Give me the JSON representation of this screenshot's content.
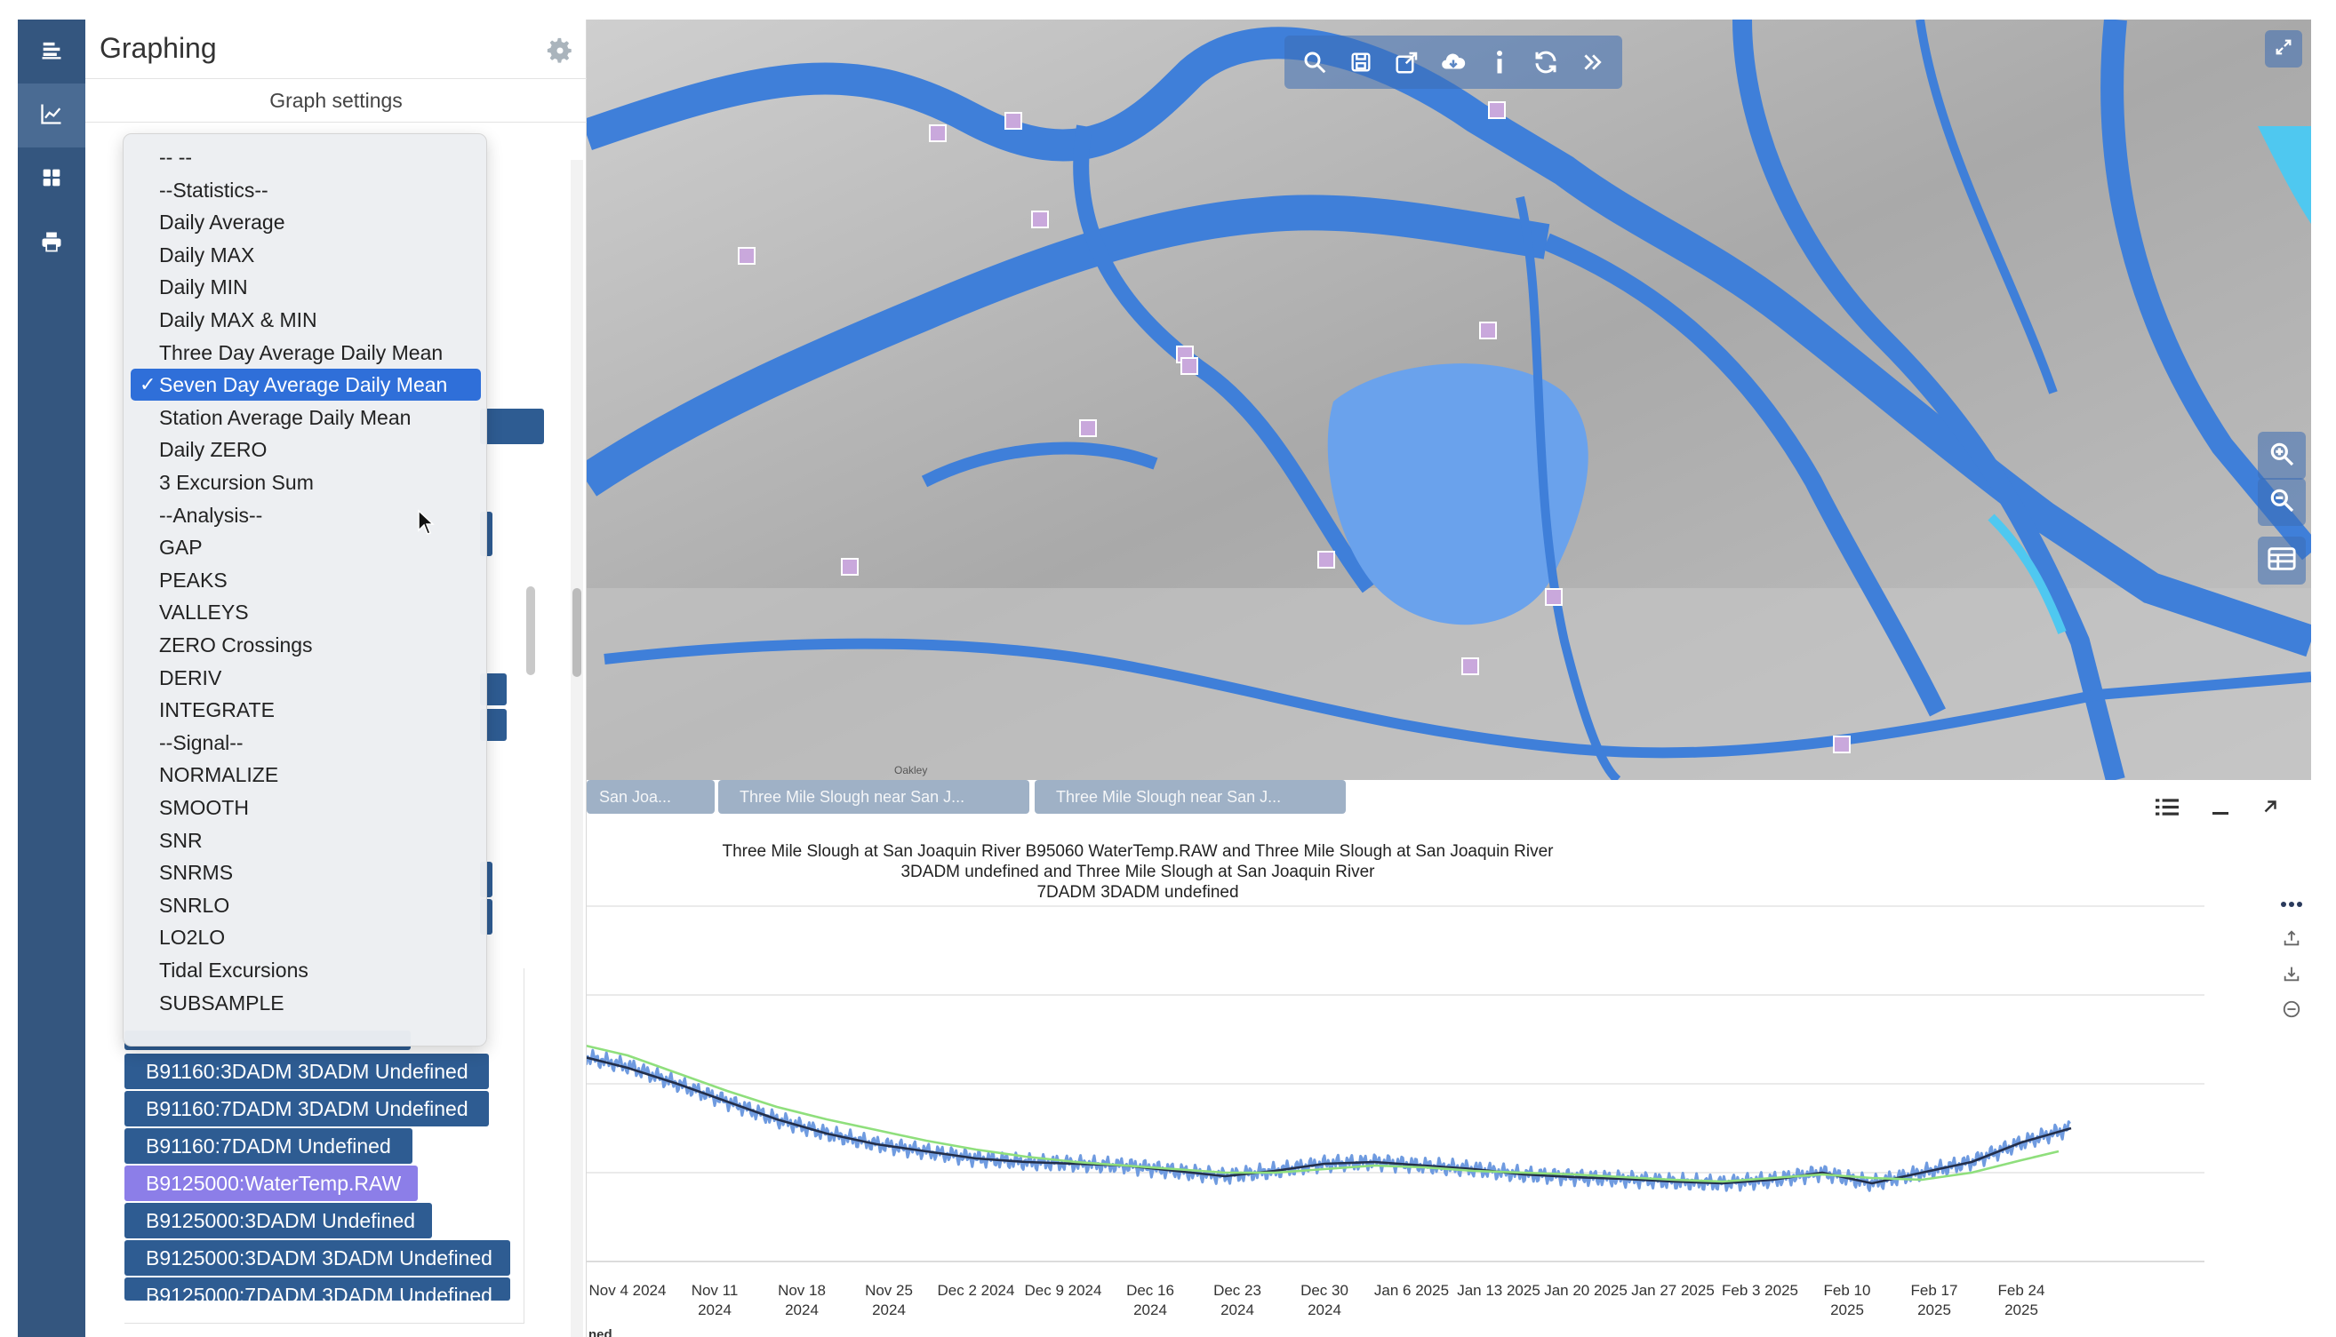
{
  "sidebar": {
    "items": [
      {
        "icon": "layers-icon"
      },
      {
        "icon": "line-chart-icon",
        "active": true
      },
      {
        "icon": "dashboard-grid-icon"
      },
      {
        "icon": "print-icon"
      }
    ]
  },
  "panel": {
    "title": "Graphing",
    "subtitle": "Graph settings",
    "gear_icon": "gear-icon"
  },
  "dropdown": {
    "selected": "Seven Day Average Daily Mean",
    "options": [
      "-- --",
      "--Statistics--",
      "Daily Average",
      "Daily MAX",
      "Daily MIN",
      "Daily MAX & MIN",
      "Three Day Average Daily Mean",
      "Seven Day Average Daily Mean",
      "Station Average Daily Mean",
      "Daily ZERO",
      "3 Excursion Sum",
      "--Analysis--",
      "GAP",
      "PEAKS",
      "VALLEYS",
      "ZERO Crossings",
      "DERIV",
      "INTEGRATE",
      "--Signal--",
      "NORMALIZE",
      "SMOOTH",
      "SNR",
      "SNRMS",
      "SNRLO",
      "LO2LO",
      "Tidal Excursions",
      "SUBSAMPLE"
    ]
  },
  "series_list": [
    {
      "label": "B91160:3DADM 3DADM Undefined"
    },
    {
      "label": "B91160:7DADM 3DADM Undefined"
    },
    {
      "label": "B91160:7DADM Undefined"
    },
    {
      "label": "B9125000:WaterTemp.RAW",
      "highlighted": true
    },
    {
      "label": "B9125000:3DADM Undefined"
    },
    {
      "label": "B9125000:3DADM 3DADM Undefined"
    },
    {
      "label": "B9125000:7DADM 3DADM Undefined"
    }
  ],
  "map": {
    "toolbar": [
      "search-icon",
      "save-icon",
      "share-icon",
      "cloud-download-icon",
      "info-icon",
      "refresh-icon",
      "chevrons-right-icon"
    ],
    "expand_icon": "expand-icon",
    "side": [
      "zoom-in-icon",
      "zoom-out-icon",
      "table-icon"
    ],
    "town_label": "Oakley"
  },
  "tabs": [
    {
      "label": "San Joa..."
    },
    {
      "label": "Three Mile Slough near San J..."
    },
    {
      "label": "Three Mile Slough near San J..."
    }
  ],
  "chart_controls": [
    "list-icon",
    "minimize-icon",
    "popout-icon"
  ],
  "chart_side_icons": [
    "more-icon",
    "upload-icon",
    "download-icon",
    "remove-icon"
  ],
  "bottom_text": "ned",
  "chart_data": {
    "type": "line",
    "title": "Three Mile Slough at San Joaquin River B95060 WaterTemp.RAW and Three Mile Slough at San Joaquin River 3DADM undefined and Three Mile Slough at San Joaquin River 7DADM 3DADM undefined",
    "title_lines": [
      "Three Mile Slough at San Joaquin River B95060 WaterTemp.RAW and Three Mile Slough at San Joaquin River",
      "3DADM undefined and Three Mile Slough at San Joaquin River",
      "7DADM 3DADM undefined"
    ],
    "x_ticks": [
      {
        "d": 0,
        "l1": "Nov 4 2024",
        "l2": ""
      },
      {
        "d": 7,
        "l1": "Nov 11",
        "l2": "2024"
      },
      {
        "d": 14,
        "l1": "Nov 18",
        "l2": "2024"
      },
      {
        "d": 21,
        "l1": "Nov 25",
        "l2": "2024"
      },
      {
        "d": 28,
        "l1": "Dec 2 2024",
        "l2": ""
      },
      {
        "d": 35,
        "l1": "Dec 9 2024",
        "l2": ""
      },
      {
        "d": 42,
        "l1": "Dec 16",
        "l2": "2024"
      },
      {
        "d": 49,
        "l1": "Dec 23",
        "l2": "2024"
      },
      {
        "d": 56,
        "l1": "Dec 30",
        "l2": "2024"
      },
      {
        "d": 63,
        "l1": "Jan 6 2025",
        "l2": ""
      },
      {
        "d": 70,
        "l1": "Jan 13 2025",
        "l2": ""
      },
      {
        "d": 77,
        "l1": "Jan 20 2025",
        "l2": ""
      },
      {
        "d": 84,
        "l1": "Jan 27 2025",
        "l2": ""
      },
      {
        "d": 91,
        "l1": "Feb 3 2025",
        "l2": ""
      },
      {
        "d": 98,
        "l1": "Feb 10",
        "l2": "2025"
      },
      {
        "d": 105,
        "l1": "Feb 17",
        "l2": "2025"
      },
      {
        "d": 112,
        "l1": "Feb 24",
        "l2": "2025"
      }
    ],
    "ylim": [
      0,
      4
    ],
    "grid": true,
    "series": [
      {
        "color": "#6f9be0",
        "style": "raw",
        "values": [
          [
            -4,
            2.32
          ],
          [
            0,
            2.2
          ],
          [
            4,
            2.0
          ],
          [
            8,
            1.8
          ],
          [
            12,
            1.6
          ],
          [
            16,
            1.44
          ],
          [
            20,
            1.32
          ],
          [
            24,
            1.24
          ],
          [
            28,
            1.16
          ],
          [
            32,
            1.12
          ],
          [
            36,
            1.1
          ],
          [
            40,
            1.08
          ],
          [
            44,
            1.02
          ],
          [
            48,
            0.96
          ],
          [
            52,
            1.02
          ],
          [
            56,
            1.1
          ],
          [
            60,
            1.12
          ],
          [
            64,
            1.08
          ],
          [
            68,
            1.04
          ],
          [
            72,
            0.98
          ],
          [
            76,
            0.95
          ],
          [
            80,
            0.93
          ],
          [
            84,
            0.9
          ],
          [
            88,
            0.88
          ],
          [
            92,
            0.92
          ],
          [
            96,
            1.0
          ],
          [
            100,
            0.88
          ],
          [
            104,
            1.0
          ],
          [
            108,
            1.12
          ],
          [
            112,
            1.34
          ],
          [
            116,
            1.5
          ]
        ]
      },
      {
        "color": "#222e4a",
        "style": "line",
        "values": [
          [
            -4,
            2.32
          ],
          [
            0,
            2.18
          ],
          [
            4,
            2.0
          ],
          [
            8,
            1.8
          ],
          [
            12,
            1.6
          ],
          [
            16,
            1.44
          ],
          [
            20,
            1.32
          ],
          [
            24,
            1.24
          ],
          [
            28,
            1.16
          ],
          [
            32,
            1.12
          ],
          [
            36,
            1.1
          ],
          [
            40,
            1.08
          ],
          [
            44,
            1.02
          ],
          [
            48,
            0.96
          ],
          [
            52,
            1.02
          ],
          [
            56,
            1.1
          ],
          [
            60,
            1.12
          ],
          [
            64,
            1.08
          ],
          [
            68,
            1.04
          ],
          [
            72,
            0.98
          ],
          [
            76,
            0.95
          ],
          [
            80,
            0.93
          ],
          [
            84,
            0.9
          ],
          [
            88,
            0.88
          ],
          [
            92,
            0.92
          ],
          [
            96,
            1.0
          ],
          [
            100,
            0.88
          ],
          [
            104,
            1.0
          ],
          [
            108,
            1.12
          ],
          [
            112,
            1.34
          ],
          [
            116,
            1.5
          ]
        ]
      },
      {
        "color": "#8fdf7c",
        "style": "line",
        "values": [
          [
            -4,
            2.45
          ],
          [
            0,
            2.32
          ],
          [
            4,
            2.12
          ],
          [
            8,
            1.92
          ],
          [
            12,
            1.74
          ],
          [
            16,
            1.6
          ],
          [
            20,
            1.48
          ],
          [
            24,
            1.36
          ],
          [
            28,
            1.26
          ],
          [
            32,
            1.18
          ],
          [
            36,
            1.12
          ],
          [
            40,
            1.08
          ],
          [
            44,
            1.04
          ],
          [
            48,
            1.0
          ],
          [
            52,
            1.0
          ],
          [
            56,
            1.04
          ],
          [
            60,
            1.08
          ],
          [
            64,
            1.06
          ],
          [
            68,
            1.02
          ],
          [
            72,
            1.0
          ],
          [
            76,
            0.98
          ],
          [
            80,
            0.95
          ],
          [
            84,
            0.92
          ],
          [
            88,
            0.9
          ],
          [
            92,
            0.94
          ],
          [
            96,
            0.98
          ],
          [
            100,
            0.94
          ],
          [
            104,
            0.92
          ],
          [
            108,
            1.0
          ],
          [
            112,
            1.14
          ],
          [
            115,
            1.24
          ]
        ]
      }
    ]
  }
}
